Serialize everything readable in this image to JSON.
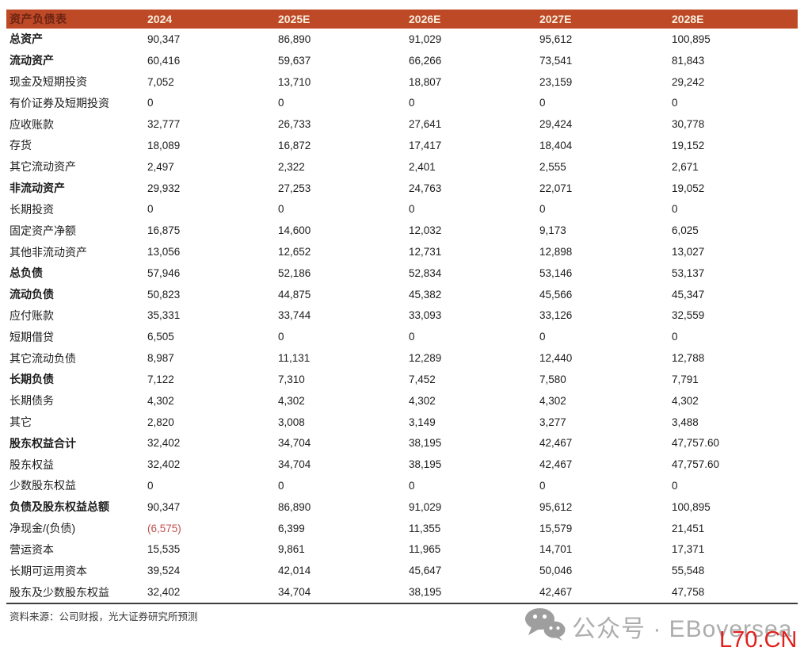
{
  "table": {
    "title": "资产负债表",
    "columns": [
      "2024",
      "2025E",
      "2026E",
      "2027E",
      "2028E"
    ],
    "rows": [
      {
        "label": "总资产",
        "bold": true,
        "values": [
          "90,347",
          "86,890",
          "91,029",
          "95,612",
          "100,895"
        ]
      },
      {
        "label": "流动资产",
        "bold": true,
        "values": [
          "60,416",
          "59,637",
          "66,266",
          "73,541",
          "81,843"
        ]
      },
      {
        "label": "现金及短期投资",
        "bold": false,
        "values": [
          "7,052",
          "13,710",
          "18,807",
          "23,159",
          "29,242"
        ]
      },
      {
        "label": "有价证券及短期投资",
        "bold": false,
        "values": [
          "0",
          "0",
          "0",
          "0",
          "0"
        ]
      },
      {
        "label": "应收账款",
        "bold": false,
        "values": [
          "32,777",
          "26,733",
          "27,641",
          "29,424",
          "30,778"
        ]
      },
      {
        "label": "存货",
        "bold": false,
        "values": [
          "18,089",
          "16,872",
          "17,417",
          "18,404",
          "19,152"
        ]
      },
      {
        "label": "其它流动资产",
        "bold": false,
        "values": [
          "2,497",
          "2,322",
          "2,401",
          "2,555",
          "2,671"
        ]
      },
      {
        "label": "非流动资产",
        "bold": true,
        "values": [
          "29,932",
          "27,253",
          "24,763",
          "22,071",
          "19,052"
        ]
      },
      {
        "label": "长期投资",
        "bold": false,
        "values": [
          "0",
          "0",
          "0",
          "0",
          "0"
        ]
      },
      {
        "label": "固定资产净额",
        "bold": false,
        "values": [
          "16,875",
          "14,600",
          "12,032",
          "9,173",
          "6,025"
        ]
      },
      {
        "label": "其他非流动资产",
        "bold": false,
        "values": [
          "13,056",
          "12,652",
          "12,731",
          "12,898",
          "13,027"
        ]
      },
      {
        "label": "总负债",
        "bold": true,
        "values": [
          "57,946",
          "52,186",
          "52,834",
          "53,146",
          "53,137"
        ]
      },
      {
        "label": "流动负债",
        "bold": true,
        "values": [
          "50,823",
          "44,875",
          "45,382",
          "45,566",
          "45,347"
        ]
      },
      {
        "label": "应付账款",
        "bold": false,
        "values": [
          "35,331",
          "33,744",
          "33,093",
          "33,126",
          "32,559"
        ]
      },
      {
        "label": "短期借贷",
        "bold": false,
        "values": [
          "6,505",
          "0",
          "0",
          "0",
          "0"
        ]
      },
      {
        "label": "其它流动负债",
        "bold": false,
        "values": [
          "8,987",
          "11,131",
          "12,289",
          "12,440",
          "12,788"
        ]
      },
      {
        "label": "长期负债",
        "bold": true,
        "values": [
          "7,122",
          "7,310",
          "7,452",
          "7,580",
          "7,791"
        ]
      },
      {
        "label": "长期债务",
        "bold": false,
        "values": [
          "4,302",
          "4,302",
          "4,302",
          "4,302",
          "4,302"
        ]
      },
      {
        "label": "其它",
        "bold": false,
        "values": [
          "2,820",
          "3,008",
          "3,149",
          "3,277",
          "3,488"
        ]
      },
      {
        "label": "股东权益合计",
        "bold": true,
        "values": [
          "32,402",
          "34,704",
          "38,195",
          "42,467",
          "47,757.60"
        ]
      },
      {
        "label": "股东权益",
        "bold": false,
        "values": [
          "32,402",
          "34,704",
          "38,195",
          "42,467",
          "47,757.60"
        ]
      },
      {
        "label": "少数股东权益",
        "bold": false,
        "values": [
          "0",
          "0",
          "0",
          "0",
          "0"
        ]
      },
      {
        "label": "负债及股东权益总额",
        "bold": true,
        "values": [
          "90,347",
          "86,890",
          "91,029",
          "95,612",
          "100,895"
        ]
      },
      {
        "label": "净现金/(负债)",
        "bold": false,
        "values": [
          "(6,575)",
          "6,399",
          "11,355",
          "15,579",
          "21,451"
        ],
        "red_indices": [
          0
        ]
      },
      {
        "label": "营运资本",
        "bold": false,
        "values": [
          "15,535",
          "9,861",
          "11,965",
          "14,701",
          "17,371"
        ]
      },
      {
        "label": "长期可运用资本",
        "bold": false,
        "values": [
          "39,524",
          "42,014",
          "45,647",
          "50,046",
          "55,548"
        ]
      },
      {
        "label": "股东及少数股东权益",
        "bold": false,
        "values": [
          "32,402",
          "34,704",
          "38,195",
          "42,467",
          "47,758"
        ]
      }
    ]
  },
  "footer": {
    "source": "资料来源：公司财报，光大证券研究所预测"
  },
  "watermark": {
    "icon": "wechat-icon",
    "label": "公众号 · EBoversea",
    "site": "L70.CN"
  },
  "colors": {
    "header_bg": "#BE4927",
    "header_title_text": "#6B2413",
    "header_year_text": "#F6EFDE",
    "negative_value": "#C0504D",
    "watermark_gray": "#ADADAD",
    "watermark_red": "#E0201C"
  }
}
